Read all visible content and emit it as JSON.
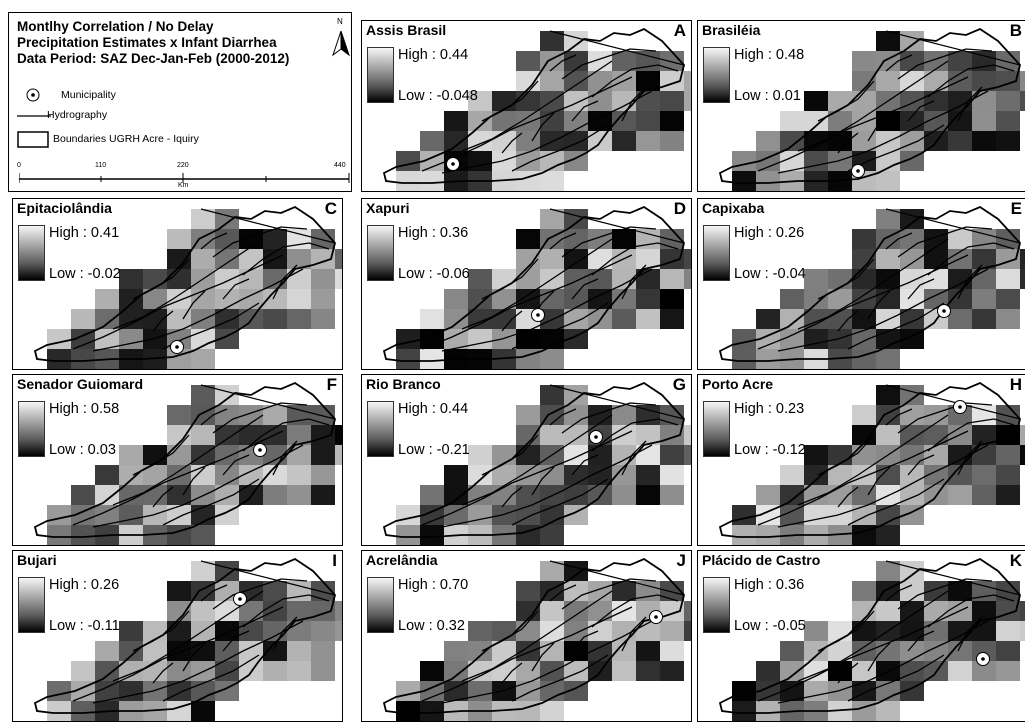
{
  "legend": {
    "title_lines": [
      "Montlhy Correlation / No Delay",
      "Precipitation Estimates x Infant Diarrhea",
      "Data Period: SAZ Dec-Jan-Feb (2000-2012)"
    ],
    "north_label": "N",
    "items": {
      "municipality": "Municipality",
      "hydrography": "Hydrography",
      "boundaries": "Boundaries UGRH Acre - Iquiry"
    },
    "scale": {
      "ticks": [
        "0",
        "110",
        "220",
        "440"
      ],
      "unit": "Km"
    }
  },
  "panels": [
    {
      "name": "Assis Brasil",
      "letter": "A",
      "high": "High : 0.44",
      "low": "Low : -0.048"
    },
    {
      "name": "Brasiléia",
      "letter": "B",
      "high": "High : 0.48",
      "low": "Low : 0.01"
    },
    {
      "name": "Epitaciolândia",
      "letter": "C",
      "high": "High : 0.41",
      "low": "Low : -0.02"
    },
    {
      "name": "Xapuri",
      "letter": "D",
      "high": "High : 0.36",
      "low": "Low : -0.06"
    },
    {
      "name": "Capixaba",
      "letter": "E",
      "high": "High : 0.26",
      "low": "Low : -0.04"
    },
    {
      "name": "Senador Guiomard",
      "letter": "F",
      "high": "High : 0.58",
      "low": "Low : 0.03"
    },
    {
      "name": "Rio Branco",
      "letter": "G",
      "high": "High : 0.44",
      "low": "Low : -0.21"
    },
    {
      "name": "Porto Acre",
      "letter": "H",
      "high": "High : 0.23",
      "low": "Low : -0.12"
    },
    {
      "name": "Bujari",
      "letter": "I",
      "high": "High : 0.26",
      "low": "Low : -0.11"
    },
    {
      "name": "Acrelândia",
      "letter": "J",
      "high": "High : 0.70",
      "low": "Low : 0.32"
    },
    {
      "name": "Plácido de Castro",
      "letter": "K",
      "high": "High : 0.36",
      "low": "Low : -0.05"
    }
  ]
}
